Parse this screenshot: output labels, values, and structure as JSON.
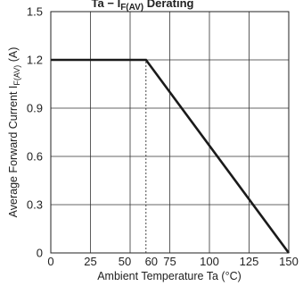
{
  "chart_data": {
    "type": "line",
    "title": "Ta − I",
    "title_sub": "F(AV)",
    "title_suffix": " Derating",
    "xlabel": "Ambient Temperature   Ta (°C)",
    "ylabel_main": "Average Forward Current   I",
    "ylabel_sub": "F(AV)",
    "ylabel_unit": " (A)",
    "xlim": [
      0,
      150
    ],
    "ylim": [
      0,
      1.5
    ],
    "x_ticks": [
      0,
      25,
      50,
      60,
      75,
      100,
      125,
      150
    ],
    "x_tick_labels": [
      "0",
      "25",
      "50",
      "60",
      "75",
      "100",
      "125",
      "150"
    ],
    "y_ticks": [
      0,
      0.3,
      0.6,
      0.9,
      1.2,
      1.5
    ],
    "y_tick_labels": [
      "0",
      "0.3",
      "0.6",
      "0.9",
      "1.2",
      "1.5"
    ],
    "grid": true,
    "series": [
      {
        "x": [
          0,
          60,
          150
        ],
        "y": [
          1.2,
          1.2,
          0
        ],
        "color": "#1a1a1a"
      }
    ],
    "reference_line": {
      "x": 60,
      "from_y": 0,
      "to_y": 1.2,
      "style": "dashed"
    }
  }
}
